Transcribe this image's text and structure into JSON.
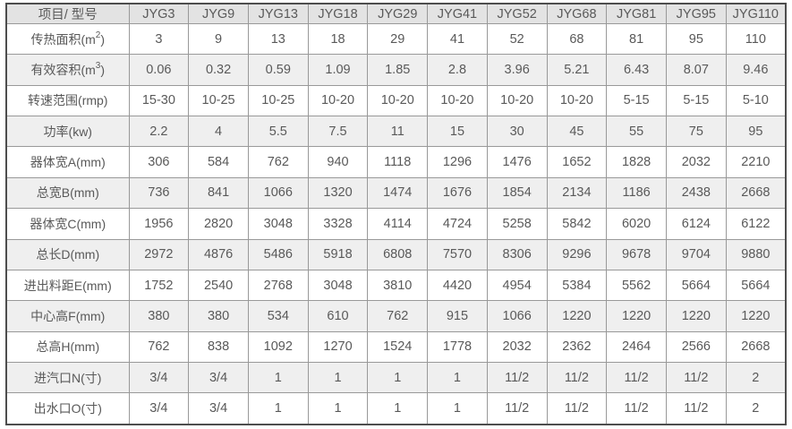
{
  "table": {
    "corner_header": "项目/ 型号",
    "model_headers": [
      "JYG3",
      "JYG9",
      "JYG13",
      "JYG18",
      "JYG29",
      "JYG41",
      "JYG52",
      "JYG68",
      "JYG81",
      "JYG95",
      "JYG110"
    ],
    "rows": [
      {
        "name": "heat-transfer-area",
        "label_parts": [
          {
            "text": "传热面积(m"
          },
          {
            "text": "2",
            "sup": true
          },
          {
            "text": ")"
          }
        ],
        "values": [
          "3",
          "9",
          "13",
          "18",
          "29",
          "41",
          "52",
          "68",
          "81",
          "95",
          "110"
        ]
      },
      {
        "name": "effective-volume",
        "label_parts": [
          {
            "text": "有效容积(m"
          },
          {
            "text": "3",
            "sup": true
          },
          {
            "text": ")"
          }
        ],
        "values": [
          "0.06",
          "0.32",
          "0.59",
          "1.09",
          "1.85",
          "2.8",
          "3.96",
          "5.21",
          "6.43",
          "8.07",
          "9.46"
        ]
      },
      {
        "name": "speed-range",
        "label_parts": [
          {
            "text": "转速范围(rmp)"
          }
        ],
        "values": [
          "15-30",
          "10-25",
          "10-25",
          "10-20",
          "10-20",
          "10-20",
          "10-20",
          "10-20",
          "5-15",
          "5-15",
          "5-10"
        ]
      },
      {
        "name": "power",
        "label_parts": [
          {
            "text": "功率(kw)"
          }
        ],
        "values": [
          "2.2",
          "4",
          "5.5",
          "7.5",
          "11",
          "15",
          "30",
          "45",
          "55",
          "75",
          "95"
        ]
      },
      {
        "name": "body-width-a",
        "label_parts": [
          {
            "text": "器体宽A(mm)"
          }
        ],
        "values": [
          "306",
          "584",
          "762",
          "940",
          "1118",
          "1296",
          "1476",
          "1652",
          "1828",
          "2032",
          "2210"
        ]
      },
      {
        "name": "total-width-b",
        "label_parts": [
          {
            "text": "总宽B(mm)"
          }
        ],
        "values": [
          "736",
          "841",
          "1066",
          "1320",
          "1474",
          "1676",
          "1854",
          "2134",
          "1186",
          "2438",
          "2668"
        ]
      },
      {
        "name": "body-width-c",
        "label_parts": [
          {
            "text": "器体宽C(mm)"
          }
        ],
        "values": [
          "1956",
          "2820",
          "3048",
          "3328",
          "4114",
          "4724",
          "5258",
          "5842",
          "6020",
          "6124",
          "6122"
        ]
      },
      {
        "name": "total-length-d",
        "label_parts": [
          {
            "text": "总长D(mm)"
          }
        ],
        "values": [
          "2972",
          "4876",
          "5486",
          "5918",
          "6808",
          "7570",
          "8306",
          "9296",
          "9678",
          "9704",
          "9880"
        ]
      },
      {
        "name": "feed-discharge-distance-e",
        "label_parts": [
          {
            "text": "进出料距E(mm)"
          }
        ],
        "values": [
          "1752",
          "2540",
          "2768",
          "3048",
          "3810",
          "4420",
          "4954",
          "5384",
          "5562",
          "5664",
          "5664"
        ]
      },
      {
        "name": "center-height-f",
        "label_parts": [
          {
            "text": "中心高F(mm)"
          }
        ],
        "values": [
          "380",
          "380",
          "534",
          "610",
          "762",
          "915",
          "1066",
          "1220",
          "1220",
          "1220",
          "1220"
        ]
      },
      {
        "name": "total-height-h",
        "label_parts": [
          {
            "text": "总高H(mm)"
          }
        ],
        "values": [
          "762",
          "838",
          "1092",
          "1270",
          "1524",
          "1778",
          "2032",
          "2362",
          "2464",
          "2566",
          "2668"
        ]
      },
      {
        "name": "steam-inlet-n",
        "label_parts": [
          {
            "text": "进汽口N(寸)"
          }
        ],
        "values": [
          "3/4",
          "3/4",
          "1",
          "1",
          "1",
          "1",
          "11/2",
          "11/2",
          "11/2",
          "11/2",
          "2"
        ]
      },
      {
        "name": "water-outlet-o",
        "label_parts": [
          {
            "text": "出水口O(寸)"
          }
        ],
        "values": [
          "3/4",
          "3/4",
          "1",
          "1",
          "1",
          "1",
          "11/2",
          "11/2",
          "11/2",
          "11/2",
          "2"
        ]
      }
    ],
    "colors": {
      "header_bg": "#e3e3e3",
      "stripe_bg": "#efefef",
      "row_bg": "#ffffff",
      "grid_line": "#999999",
      "outer_border": "#4d4d4d",
      "text": "#595959"
    }
  }
}
